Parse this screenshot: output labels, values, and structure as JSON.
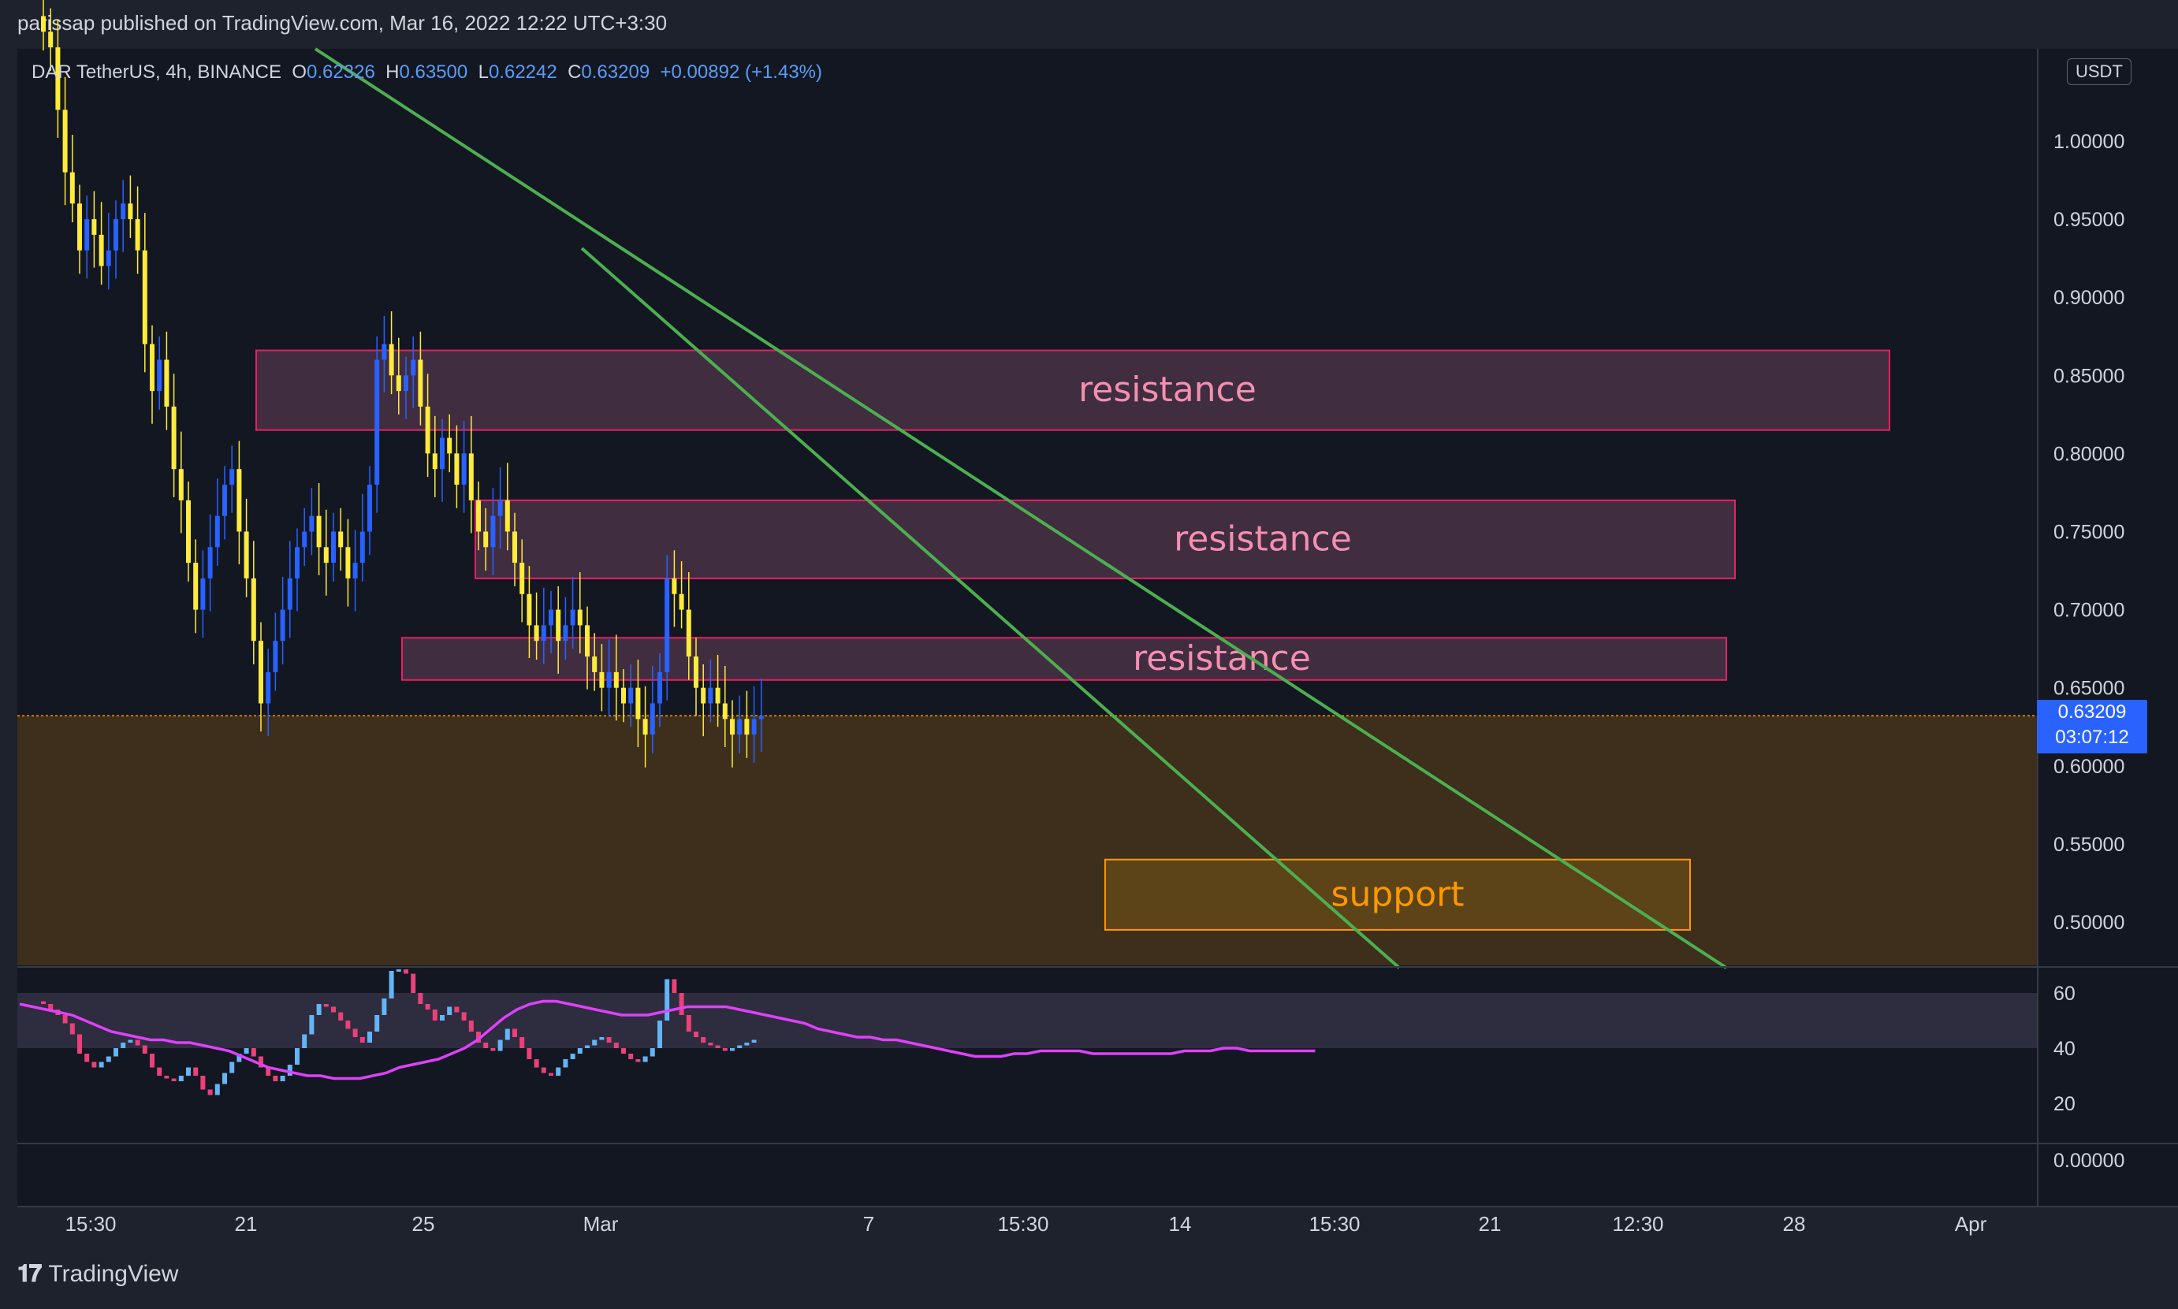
{
  "header": {
    "published": "parissap published on TradingView.com, Mar 16, 2022 12:22 UTC+3:30"
  },
  "symbol": {
    "prefix": "DAR",
    "name": "TetherUS, 4h, BINANCE",
    "o_label": "O",
    "o": "0.62326",
    "h_label": "H",
    "h": "0.63500",
    "l_label": "L",
    "l": "0.62242",
    "c_label": "C",
    "c": "0.63209",
    "change": "+0.00892 (+1.43%)"
  },
  "currency_badge": "USDT",
  "last_price": {
    "value": "0.63209",
    "countdown": "03:07:12"
  },
  "footer": {
    "brand": "TradingView"
  },
  "colors": {
    "background": "#131722",
    "candle_up": "#2962ff",
    "candle_down": "#ffeb3b",
    "trendline": "#4caf50",
    "resistance_fill": "#4a3145",
    "resistance_border": "#e91e63",
    "resistance_text": "#f48fb1",
    "support_fill": "#5e4418",
    "support_border": "#ff9800",
    "support_text": "#ff9800",
    "support_zone": "#3d2f1c",
    "rsi_line": "#e040fb",
    "rsi_band": "#2e2c3f"
  },
  "chart_data": [
    {
      "type": "candlestick",
      "title": "",
      "xlabel": "",
      "ylabel": "",
      "y_ticks": [
        "1.00000",
        "0.95000",
        "0.90000",
        "0.85000",
        "0.80000",
        "0.75000",
        "0.70000",
        "0.65000",
        "0.60000",
        "0.55000",
        "0.50000"
      ],
      "ylim": [
        0.47,
        1.06
      ],
      "x_ticks": [
        "15:30",
        "21",
        "25",
        "Mar",
        "7",
        "15:30",
        "14",
        "15:30",
        "21",
        "12:30",
        "28",
        "Apr"
      ],
      "grid": false,
      "close_series": [
        1.07,
        1.06,
        1.02,
        0.98,
        0.96,
        0.93,
        0.95,
        0.94,
        0.92,
        0.93,
        0.95,
        0.96,
        0.95,
        0.93,
        0.87,
        0.84,
        0.86,
        0.83,
        0.79,
        0.77,
        0.73,
        0.7,
        0.72,
        0.74,
        0.76,
        0.78,
        0.79,
        0.75,
        0.72,
        0.68,
        0.64,
        0.66,
        0.68,
        0.7,
        0.72,
        0.74,
        0.75,
        0.76,
        0.74,
        0.73,
        0.75,
        0.74,
        0.72,
        0.73,
        0.75,
        0.78,
        0.86,
        0.87,
        0.85,
        0.84,
        0.85,
        0.86,
        0.83,
        0.8,
        0.79,
        0.81,
        0.8,
        0.78,
        0.8,
        0.77,
        0.75,
        0.74,
        0.76,
        0.77,
        0.75,
        0.73,
        0.71,
        0.69,
        0.68,
        0.69,
        0.7,
        0.68,
        0.69,
        0.7,
        0.69,
        0.67,
        0.66,
        0.65,
        0.66,
        0.65,
        0.64,
        0.65,
        0.63,
        0.62,
        0.64,
        0.66,
        0.72,
        0.71,
        0.7,
        0.67,
        0.65,
        0.64,
        0.65,
        0.64,
        0.63,
        0.62,
        0.63,
        0.62,
        0.63,
        0.632
      ],
      "zones": [
        {
          "label": "resistance",
          "y_low": 0.815,
          "y_high": 0.866
        },
        {
          "label": "resistance",
          "y_low": 0.72,
          "y_high": 0.77
        },
        {
          "label": "resistance",
          "y_low": 0.655,
          "y_high": 0.682
        },
        {
          "label": "support",
          "y_low": 0.495,
          "y_high": 0.54
        }
      ],
      "annotations": [
        "resistance",
        "resistance",
        "resistance",
        "support"
      ]
    },
    {
      "type": "line",
      "title": "",
      "y_ticks": [
        "60",
        "40",
        "20"
      ],
      "ylim": [
        0,
        70
      ],
      "band": [
        40,
        60
      ],
      "series": [
        {
          "values": [
            57,
            56,
            54,
            52,
            49,
            45,
            38,
            35,
            33,
            35,
            37,
            40,
            42,
            43,
            41,
            38,
            33,
            30,
            29,
            28,
            30,
            33,
            30,
            25,
            23,
            27,
            31,
            35,
            38,
            40,
            37,
            33,
            30,
            28,
            30,
            34,
            40,
            45,
            52,
            56,
            55,
            53,
            50,
            47,
            44,
            42,
            46,
            52,
            58,
            68,
            70,
            67,
            60,
            56,
            54,
            50,
            52,
            55,
            53,
            50,
            46,
            42,
            40,
            39,
            43,
            47,
            44,
            40,
            36,
            33,
            31,
            30,
            33,
            36,
            38,
            40,
            41,
            43,
            44,
            42,
            40,
            38,
            36,
            35,
            37,
            40,
            50,
            65,
            60,
            52,
            46,
            44,
            42,
            41,
            40,
            39,
            40,
            41,
            42,
            43
          ]
        },
        {
          "values": [
            56,
            55,
            54,
            53,
            52,
            50,
            48,
            46,
            45,
            44,
            43,
            43,
            42,
            42,
            41,
            40,
            39,
            37,
            35,
            33,
            32,
            31,
            30,
            30,
            29,
            29,
            29,
            30,
            31,
            33,
            34,
            35,
            36,
            38,
            40,
            43,
            47,
            51,
            54,
            56,
            57,
            57,
            56,
            55,
            54,
            53,
            52,
            52,
            52,
            53,
            54,
            55,
            55,
            55,
            55,
            54,
            53,
            52,
            51,
            50,
            49,
            47,
            46,
            45,
            44,
            44,
            43,
            43,
            42,
            41,
            40,
            39,
            38,
            37,
            37,
            37,
            38,
            38,
            39,
            39,
            39,
            39,
            38,
            38,
            38,
            38,
            38,
            38,
            38,
            39,
            39,
            39,
            40,
            40,
            39,
            39,
            39,
            39,
            39,
            39
          ]
        }
      ]
    }
  ]
}
